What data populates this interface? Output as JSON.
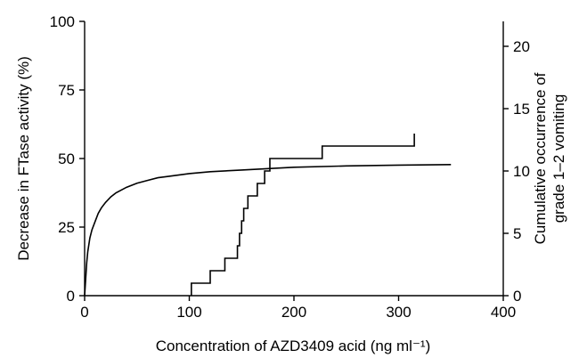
{
  "chart_data": {
    "type": "line",
    "title": "",
    "xlabel": "Concentration of AZD3409 acid (ng ml⁻¹)",
    "ylabel": "Decrease in FTase activity  (%)",
    "y2label_line1": "Cumulative occurrence of",
    "y2label_line2": "grade 1–2 vomiting",
    "xlim": [
      0,
      400
    ],
    "ylim": [
      0,
      100
    ],
    "y2lim": [
      0,
      22
    ],
    "xticks": [
      0,
      100,
      200,
      300,
      400
    ],
    "yticks": [
      0,
      25,
      50,
      75,
      100
    ],
    "y2ticks": [
      0,
      5,
      10,
      15,
      20
    ],
    "grid": false,
    "legend": "none",
    "series": [
      {
        "axis": "left",
        "kind": "line",
        "x": [
          0,
          1,
          2,
          3,
          5,
          7,
          10,
          13,
          16,
          20,
          25,
          30,
          40,
          50,
          60,
          70,
          80,
          100,
          120,
          150,
          180,
          200,
          250,
          300,
          350
        ],
        "values": [
          0,
          6,
          12,
          16,
          21,
          24,
          27,
          30,
          32,
          34,
          36,
          37.5,
          39.5,
          41,
          42,
          43,
          43.5,
          44.5,
          45.2,
          45.8,
          46.4,
          46.8,
          47.3,
          47.6,
          47.8
        ]
      },
      {
        "axis": "right",
        "kind": "step",
        "x": [
          102,
          120,
          134,
          146,
          148,
          150,
          152,
          156,
          165,
          172,
          177,
          227,
          315
        ],
        "values": [
          1,
          2,
          3,
          4,
          5,
          6,
          7,
          8,
          9,
          10,
          11,
          12,
          13
        ]
      }
    ]
  }
}
